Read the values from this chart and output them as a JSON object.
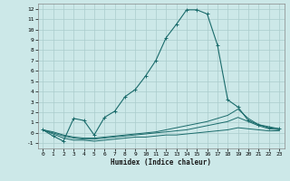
{
  "xlabel": "Humidex (Indice chaleur)",
  "xlim": [
    -0.5,
    23.5
  ],
  "ylim": [
    -1.5,
    12.5
  ],
  "yticks": [
    -1,
    0,
    1,
    2,
    3,
    4,
    5,
    6,
    7,
    8,
    9,
    10,
    11,
    12
  ],
  "xticks": [
    0,
    1,
    2,
    3,
    4,
    5,
    6,
    7,
    8,
    9,
    10,
    11,
    12,
    13,
    14,
    15,
    16,
    17,
    18,
    19,
    20,
    21,
    22,
    23
  ],
  "bg_color": "#cce8e8",
  "grid_color": "#aacccc",
  "line_color": "#1a6b6b",
  "main_x": [
    0,
    1,
    2,
    3,
    4,
    5,
    6,
    7,
    8,
    9,
    10,
    11,
    12,
    13,
    14,
    15,
    16,
    17,
    18,
    19,
    20,
    21,
    22,
    23
  ],
  "main_y": [
    0.3,
    -0.3,
    -0.8,
    1.4,
    1.2,
    -0.2,
    1.5,
    2.1,
    3.5,
    4.2,
    5.5,
    7.0,
    9.2,
    10.5,
    11.9,
    11.9,
    11.5,
    8.5,
    3.2,
    2.5,
    1.2,
    0.8,
    0.5,
    0.4
  ],
  "line2_x": [
    0,
    1,
    2,
    3,
    4,
    5,
    6,
    7,
    8,
    9,
    10,
    11,
    12,
    13,
    14,
    15,
    16,
    17,
    18,
    19,
    20,
    21,
    22,
    23
  ],
  "line2_y": [
    0.3,
    0.1,
    -0.2,
    -0.4,
    -0.5,
    -0.5,
    -0.4,
    -0.3,
    -0.2,
    -0.1,
    0.0,
    0.1,
    0.3,
    0.5,
    0.7,
    0.9,
    1.1,
    1.4,
    1.7,
    2.3,
    1.4,
    0.8,
    0.6,
    0.4
  ],
  "line3_x": [
    0,
    1,
    2,
    3,
    4,
    5,
    6,
    7,
    8,
    9,
    10,
    11,
    12,
    13,
    14,
    15,
    16,
    17,
    18,
    19,
    20,
    21,
    22,
    23
  ],
  "line3_y": [
    0.3,
    0.0,
    -0.3,
    -0.5,
    -0.6,
    -0.6,
    -0.5,
    -0.4,
    -0.3,
    -0.2,
    -0.1,
    0.0,
    0.1,
    0.2,
    0.3,
    0.5,
    0.7,
    0.9,
    1.1,
    1.5,
    1.1,
    0.7,
    0.4,
    0.3
  ],
  "line4_x": [
    0,
    1,
    2,
    3,
    4,
    5,
    6,
    7,
    8,
    9,
    10,
    11,
    12,
    13,
    14,
    15,
    16,
    17,
    18,
    19,
    20,
    21,
    22,
    23
  ],
  "line4_y": [
    0.3,
    -0.1,
    -0.5,
    -0.7,
    -0.7,
    -0.8,
    -0.7,
    -0.6,
    -0.5,
    -0.4,
    -0.4,
    -0.3,
    -0.2,
    -0.2,
    -0.1,
    0.0,
    0.1,
    0.2,
    0.3,
    0.5,
    0.4,
    0.3,
    0.2,
    0.2
  ]
}
